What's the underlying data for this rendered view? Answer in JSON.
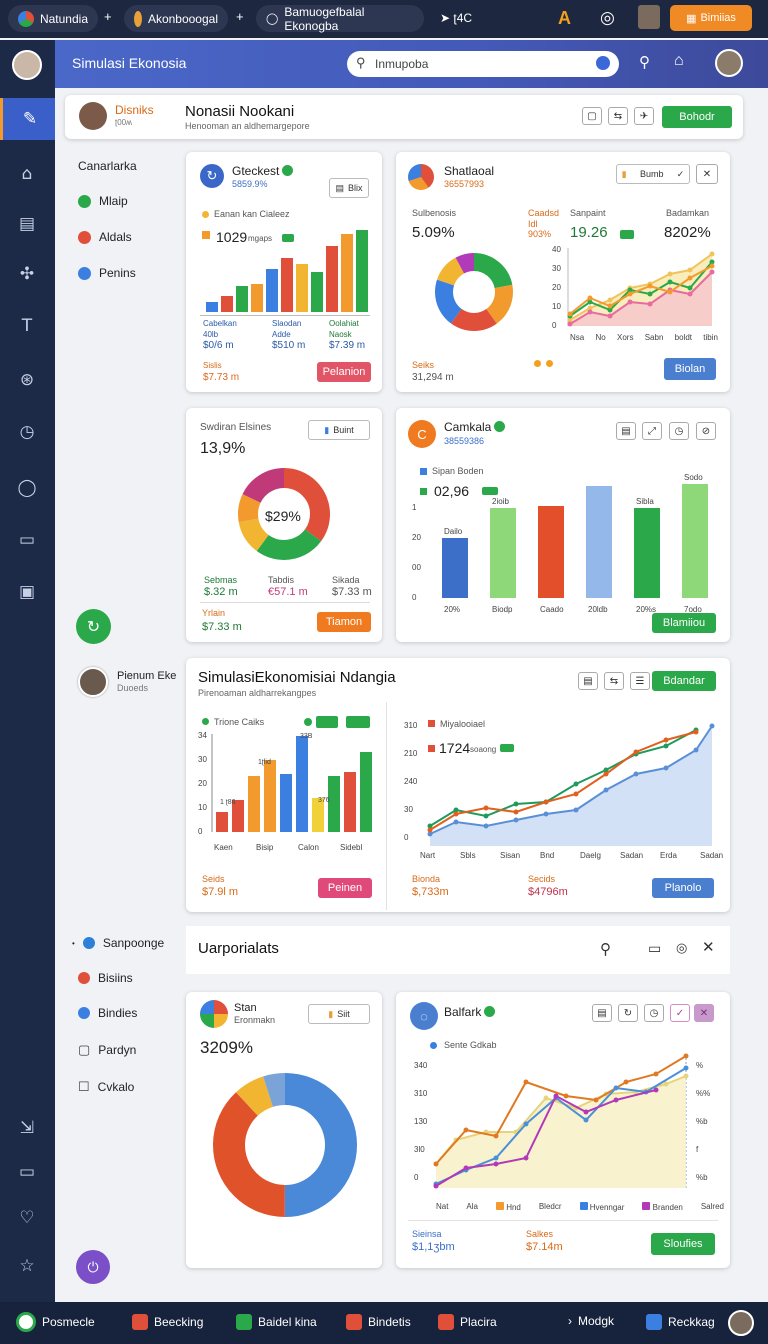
{
  "browser": {
    "tabs": [
      {
        "label": "Natundia",
        "color": "#e04f3a"
      },
      {
        "label": "Akonbooogal",
        "color": "#e8a13a"
      },
      {
        "label": "Bamuogefbalal Ekonogba",
        "color": "#ffffff"
      }
    ],
    "extra_tab": "ʈ4C",
    "action_button": "Bimiias"
  },
  "header": {
    "title": "Simulasi Ekonosia",
    "search_placeholder": "Inmupoba"
  },
  "profile": {
    "name": "Disniks",
    "sub": "ʈ00ʍ",
    "title": "Nonasii Nookani",
    "subtitle": "Henooman an aldhemargepore",
    "action": "Bohodr"
  },
  "left_menu": {
    "heading": "Canarlarka",
    "items": [
      {
        "label": "Mlaip",
        "color": "#2aa84a"
      },
      {
        "label": "Aldals",
        "color": "#e04f3a"
      },
      {
        "label": "Penins",
        "color": "#3b7fe0"
      }
    ]
  },
  "card1": {
    "title": "Gteckest",
    "sub": "5859.9%",
    "pill": "Blix",
    "legend": "Eanan kan Cialeez",
    "value": "1029",
    "value_label": "mgaps",
    "stats": [
      {
        "label": "Cabelkan",
        "v1": "40lb",
        "v2": "$0/6 m"
      },
      {
        "label": "Slaodan",
        "v1": "Adde",
        "v2": "$510 m"
      },
      {
        "label": "Oolahiat",
        "v1": "Naosk",
        "v2": "$7.39 m"
      }
    ],
    "footer_label": "Sislis",
    "footer_value": "$7.73 m",
    "button": "Pelanion"
  },
  "card2": {
    "title": "Shatlaoal",
    "sub": "36557993",
    "pill": "Bumb",
    "stat1_label": "Sulbenosis",
    "stat1": "5.09%",
    "stat2_label": "Caadsd",
    "stat2_sub": "Idl 903%",
    "stat3_label": "Sanpaint",
    "stat3": "19.26",
    "stat4_label": "Badamkan",
    "stat4": "8202%",
    "xlabels": [
      "Nsa",
      "No",
      "Xors",
      "Sabn",
      "boldt",
      "tibin"
    ],
    "footer_label": "Seiks",
    "footer_value": "31,294 m",
    "button": "Biolan"
  },
  "card3": {
    "title": "Swdiran Elsines",
    "value": "13,9%",
    "pill": "Buint",
    "center": "$29%",
    "stats": [
      {
        "label": "Sebmas",
        "v": "$.32 m"
      },
      {
        "label": "Tabdis",
        "v": "€57.1 m"
      },
      {
        "label": "Sikada",
        "v": "$7.33 m"
      }
    ],
    "footer_label": "Yrlain",
    "footer_value": "$7.33 m",
    "button": "Tiamon"
  },
  "card4": {
    "title": "Camkala",
    "sub": "38559386",
    "legend": "Sipan Boden",
    "value": "02,96",
    "bar_labels": [
      "Dailo",
      "2ioib",
      "",
      "",
      "Sibla",
      "Sodo"
    ],
    "xlabels": [
      "20%",
      "Biodp",
      "Caado",
      "20ldb",
      "20%s",
      "7odo"
    ],
    "button": "Blamiiou"
  },
  "left_user": {
    "name": "Pienum Eke",
    "sub": "Duoeds"
  },
  "wide": {
    "title": "SimulasiEkonomisiai Ndangia",
    "subtitle": "Pirenoaman aldharrekangpes",
    "button": "Bdandar"
  },
  "card5": {
    "legend": "Trione Caiks",
    "bar_labels": [
      "1 ʈ86",
      "1ʈlid",
      "33B",
      "376"
    ],
    "xlabels": [
      "Kaen",
      "Bisip",
      "Calon",
      "Sidebl"
    ],
    "footer_label": "Seids",
    "footer_value": "$7.9l m",
    "button": "Peinen"
  },
  "card6": {
    "legend": "Miyalooiael",
    "value": "1724",
    "value_label": "soaong",
    "xlabels": [
      "Nart",
      "Sbls",
      "Sisan",
      "Bnd",
      "Daelg",
      "Sadan",
      "Erda",
      "Sadan"
    ],
    "stat1_label": "Bionda",
    "stat1": "$,733m",
    "stat2_label": "Secids",
    "stat2": "$4796m",
    "button": "Planolo"
  },
  "left_menu2": {
    "items": [
      {
        "label": "Sanpoonge",
        "color": "#2e7fd8"
      },
      {
        "label": "Bisiins",
        "color": "#e04f3a"
      },
      {
        "label": "Bindies",
        "color": "#3b7fe0"
      },
      {
        "label": "Pardyn",
        "color": ""
      },
      {
        "label": "Cvkalo",
        "color": ""
      }
    ]
  },
  "section_bar": {
    "title": "Uarporialats"
  },
  "card7": {
    "title": "Stan",
    "sub": "Eronmakn",
    "value": "3209%",
    "pill": "Siit"
  },
  "card8": {
    "title": "Balfark",
    "legend": "Sente Gdkab",
    "legend_items": [
      "Nat",
      "Ala",
      "Hnd",
      "Bledcr",
      "Hvenngar",
      "Branden",
      "Salred"
    ],
    "stat1_label": "Sieinsa",
    "stat1": "$1,1ʒbm",
    "stat2_label": "Salkes",
    "stat2": "$7.14m",
    "button": "Sloufies"
  },
  "bottom": {
    "items": [
      {
        "label": "Posmecle",
        "color": "#2aa84a"
      },
      {
        "label": "Beecking",
        "color": "#e04f3a"
      },
      {
        "label": "Baidel kina",
        "color": "#2aa84a"
      },
      {
        "label": "Bindetis",
        "color": "#e04f3a"
      },
      {
        "label": "Placira",
        "color": "#e04f3a"
      },
      {
        "label": "Modgk",
        "color": ""
      },
      {
        "label": "Reckkag",
        "color": "#3b7fe0"
      }
    ]
  },
  "colors": {
    "accent": "#4a68c9",
    "green": "#2aa84a",
    "red": "#e04f3a",
    "orange": "#f29a2e",
    "blue": "#3b7fe0"
  }
}
